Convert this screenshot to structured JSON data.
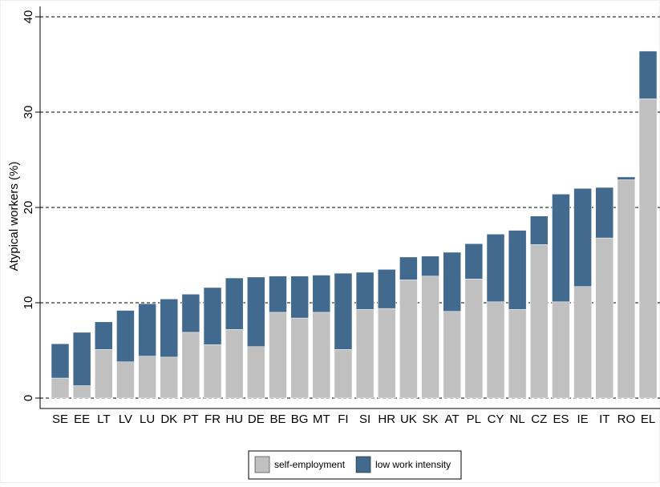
{
  "chart_data": {
    "type": "stacked-bar",
    "y_label": "Atypical workers (%)",
    "categories": [
      "SE",
      "EE",
      "LT",
      "LV",
      "LU",
      "DK",
      "PT",
      "FR",
      "HU",
      "DE",
      "BE",
      "BG",
      "MT",
      "FI",
      "SI",
      "HR",
      "UK",
      "SK",
      "AT",
      "PL",
      "CY",
      "NL",
      "CZ",
      "ES",
      "IE",
      "IT",
      "RO",
      "EL"
    ],
    "series": [
      {
        "name": "self-employment",
        "color": "#c0c0c0",
        "values": [
          2.1,
          1.3,
          5.1,
          3.8,
          4.4,
          4.3,
          6.9,
          5.6,
          7.2,
          5.4,
          9.0,
          8.4,
          9.0,
          5.1,
          9.3,
          9.4,
          12.4,
          12.8,
          9.1,
          12.5,
          10.1,
          9.3,
          16.1,
          10.1,
          11.7,
          16.8,
          22.9,
          31.4
        ]
      },
      {
        "name": "low work intensity",
        "color": "#426a8e",
        "values": [
          3.6,
          5.6,
          2.9,
          5.4,
          5.5,
          6.1,
          4.0,
          6.0,
          5.4,
          7.3,
          3.8,
          4.4,
          3.9,
          8.0,
          3.9,
          4.1,
          2.4,
          2.1,
          6.2,
          3.7,
          7.1,
          8.3,
          3.0,
          11.3,
          10.3,
          5.3,
          0.3,
          5.0
        ]
      }
    ],
    "ylim": [
      0,
      40
    ],
    "yticks": [
      0,
      10,
      20,
      30,
      40
    ],
    "grid": true
  }
}
